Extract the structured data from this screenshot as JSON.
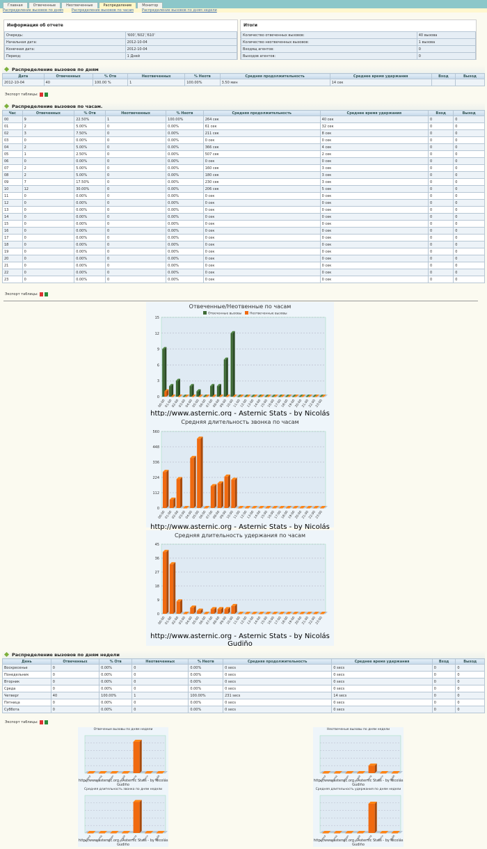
{
  "nav": {
    "tabs": [
      "Главная",
      "Отвеченные",
      "Неотвеченные",
      "Распределение",
      "Монитор"
    ],
    "active_tab": 3,
    "sublinks": [
      "Распределение вызовов по дням",
      "Распределение вызовов по часам",
      "Распределение вызовов по дням недели"
    ]
  },
  "report_info": {
    "title": "Информация об отчете",
    "rows": [
      {
        "label": "Очередь:",
        "value": "'600','602','610'"
      },
      {
        "label": "Начальная дата:",
        "value": "2012-10-04"
      },
      {
        "label": "Конечная дата:",
        "value": "2012-10-04"
      },
      {
        "label": "Период:",
        "value": "1 Дней"
      }
    ]
  },
  "totals": {
    "title": "Итоги",
    "rows": [
      {
        "label": "Количество отвеченных вызовов:",
        "value": "40 вызова"
      },
      {
        "label": "Количество неотвеченных вызовов:",
        "value": "1 вызова"
      },
      {
        "label": "Входящ агентов:",
        "value": "0"
      },
      {
        "label": "Выходов агентов:",
        "value": "0"
      }
    ]
  },
  "export_label": "Экспорт таблицы:",
  "by_day": {
    "title": "Распределение вызовов по дням",
    "columns": [
      "Дата",
      "Отвеченных",
      "% Отв",
      "Неотвеченных",
      "% Неотв",
      "Средняя продолжительность",
      "Среднее время удержания",
      "Вход",
      "Выход"
    ],
    "rows": [
      [
        "2012-10-04",
        "40",
        "100.00 %",
        "1",
        "100.00%",
        "3.50 мин",
        "14 сек",
        "",
        ""
      ]
    ]
  },
  "by_hour": {
    "title": "Распределение вызовов по часам.",
    "columns": [
      "Час",
      "Отвеченных",
      "% Отв",
      "Неотвеченных",
      "% Неотв",
      "Средняя продолжительность",
      "Среднее время удержания",
      "Вход",
      "Выход"
    ],
    "rows": [
      [
        "00",
        "9",
        "22.50%",
        "1",
        "100.00%",
        "264 сек",
        "40 сек",
        "0",
        "0"
      ],
      [
        "01",
        "2",
        "5.00%",
        "0",
        "0.00%",
        "61 сек",
        "32 сек",
        "0",
        "0"
      ],
      [
        "02",
        "3",
        "7.50%",
        "0",
        "0.00%",
        "211 сек",
        "8 сек",
        "0",
        "0"
      ],
      [
        "03",
        "0",
        "0.00%",
        "0",
        "0.00%",
        "0 сек",
        "0 сек",
        "0",
        "0"
      ],
      [
        "04",
        "2",
        "5.00%",
        "0",
        "0.00%",
        "366 сек",
        "4 сек",
        "0",
        "0"
      ],
      [
        "05",
        "1",
        "2.50%",
        "0",
        "0.00%",
        "507 сек",
        "2 сек",
        "0",
        "0"
      ],
      [
        "06",
        "0",
        "0.00%",
        "0",
        "0.00%",
        "0 сек",
        "0 сек",
        "0",
        "0"
      ],
      [
        "07",
        "2",
        "5.00%",
        "0",
        "0.00%",
        "160 сек",
        "3 сек",
        "0",
        "0"
      ],
      [
        "08",
        "2",
        "5.00%",
        "0",
        "0.00%",
        "180 сек",
        "3 сек",
        "0",
        "0"
      ],
      [
        "09",
        "7",
        "17.50%",
        "0",
        "0.00%",
        "230 сек",
        "3 сек",
        "0",
        "0"
      ],
      [
        "10",
        "12",
        "30.00%",
        "0",
        "0.00%",
        "206 сек",
        "5 сек",
        "0",
        "0"
      ],
      [
        "11",
        "0",
        "0.00%",
        "0",
        "0.00%",
        "0 сек",
        "0 сек",
        "0",
        "0"
      ],
      [
        "12",
        "0",
        "0.00%",
        "0",
        "0.00%",
        "0 сек",
        "0 сек",
        "0",
        "0"
      ],
      [
        "13",
        "0",
        "0.00%",
        "0",
        "0.00%",
        "0 сек",
        "0 сек",
        "0",
        "0"
      ],
      [
        "14",
        "0",
        "0.00%",
        "0",
        "0.00%",
        "0 сек",
        "0 сек",
        "0",
        "0"
      ],
      [
        "15",
        "0",
        "0.00%",
        "0",
        "0.00%",
        "0 сек",
        "0 сек",
        "0",
        "0"
      ],
      [
        "16",
        "0",
        "0.00%",
        "0",
        "0.00%",
        "0 сек",
        "0 сек",
        "0",
        "0"
      ],
      [
        "17",
        "0",
        "0.00%",
        "0",
        "0.00%",
        "0 сек",
        "0 сек",
        "0",
        "0"
      ],
      [
        "18",
        "0",
        "0.00%",
        "0",
        "0.00%",
        "0 сек",
        "0 сек",
        "0",
        "0"
      ],
      [
        "19",
        "0",
        "0.00%",
        "0",
        "0.00%",
        "0 сек",
        "0 сек",
        "0",
        "0"
      ],
      [
        "20",
        "0",
        "0.00%",
        "0",
        "0.00%",
        "0 сек",
        "0 сек",
        "0",
        "0"
      ],
      [
        "21",
        "0",
        "0.00%",
        "0",
        "0.00%",
        "0 сек",
        "0 сек",
        "0",
        "0"
      ],
      [
        "22",
        "0",
        "0.00%",
        "0",
        "0.00%",
        "0 сек",
        "0 сек",
        "0",
        "0"
      ],
      [
        "23",
        "0",
        "0.00%",
        "0",
        "0.00%",
        "0 сек",
        "0 сек",
        "0",
        "0"
      ]
    ]
  },
  "by_weekday": {
    "title": "Распределение вызовов по дням недели",
    "columns": [
      "День",
      "Отвеченных",
      "% Отв",
      "Неотвеченных",
      "% Неотв",
      "Средняя продолжительность",
      "Среднее время удержания",
      "Вход",
      "Выход"
    ],
    "rows": [
      [
        "Воскресенье",
        "0",
        "0.00%",
        "0",
        "0.00%",
        "0 secs",
        "0 secs",
        "0",
        "0"
      ],
      [
        "Понедельник",
        "0",
        "0.00%",
        "0",
        "0.00%",
        "0 secs",
        "0 secs",
        "0",
        "0"
      ],
      [
        "Вторник",
        "0",
        "0.00%",
        "0",
        "0.00%",
        "0 secs",
        "0 secs",
        "0",
        "0"
      ],
      [
        "Среда",
        "0",
        "0.00%",
        "0",
        "0.00%",
        "0 secs",
        "0 secs",
        "0",
        "0"
      ],
      [
        "Четверг",
        "40",
        "100.00%",
        "1",
        "100.00%",
        "231 secs",
        "14 secs",
        "0",
        "0"
      ],
      [
        "Пятница",
        "0",
        "0.00%",
        "0",
        "0.00%",
        "0 secs",
        "0 secs",
        "0",
        "0"
      ],
      [
        "Суббота",
        "0",
        "0.00%",
        "0",
        "0.00%",
        "0 secs",
        "0 secs",
        "0",
        "0"
      ]
    ]
  },
  "chart_footer": "http://www.asternic.org - Asternic Stats - by Nicolás Gudiño",
  "colors": {
    "answered": "#3f6b35",
    "unanswered": "#f06a10",
    "panel": "#eef5fa"
  },
  "chart_data": [
    {
      "type": "bar",
      "title": "Отвеченные/Неотвенные по часам",
      "categories": [
        "00",
        "01",
        "02",
        "03",
        "04",
        "05",
        "06",
        "07",
        "08",
        "09",
        "10",
        "11",
        "12",
        "13",
        "14",
        "15",
        "16",
        "17",
        "18",
        "19",
        "20",
        "21",
        "22",
        "23"
      ],
      "series": [
        {
          "name": "Отвеченные вызовы",
          "values": [
            9,
            2,
            3,
            0,
            2,
            1,
            0,
            2,
            2,
            7,
            12,
            0,
            0,
            0,
            0,
            0,
            0,
            0,
            0,
            0,
            0,
            0,
            0,
            0
          ]
        },
        {
          "name": "Неотвеченные вызовы",
          "values": [
            1,
            0,
            0,
            0,
            0,
            0,
            0,
            0,
            0,
            0,
            0,
            0,
            0,
            0,
            0,
            0,
            0,
            0,
            0,
            0,
            0,
            0,
            0,
            0
          ]
        }
      ],
      "yticks": [
        0,
        3,
        6,
        9,
        12,
        15
      ],
      "ylim": [
        0,
        15
      ]
    },
    {
      "type": "bar",
      "title": "Средняя длительность звонка по часам",
      "categories": [
        "00",
        "01",
        "02",
        "03",
        "04",
        "05",
        "06",
        "07",
        "08",
        "09",
        "10",
        "11",
        "12",
        "13",
        "14",
        "15",
        "16",
        "17",
        "18",
        "19",
        "20",
        "21",
        "22",
        "23"
      ],
      "values": [
        264,
        61,
        211,
        0,
        366,
        507,
        0,
        160,
        180,
        230,
        206,
        0,
        0,
        0,
        0,
        0,
        0,
        0,
        0,
        0,
        0,
        0,
        0,
        0
      ],
      "yticks": [
        0,
        112,
        224,
        336,
        448,
        560
      ],
      "ylim": [
        0,
        560
      ]
    },
    {
      "type": "bar",
      "title": "Средняя длительность удержания по часам",
      "categories": [
        "00",
        "01",
        "02",
        "03",
        "04",
        "05",
        "06",
        "07",
        "08",
        "09",
        "10",
        "11",
        "12",
        "13",
        "14",
        "15",
        "16",
        "17",
        "18",
        "19",
        "20",
        "21",
        "22",
        "23"
      ],
      "values": [
        40,
        32,
        8,
        0,
        4,
        2,
        0,
        3,
        3,
        3,
        5,
        0,
        0,
        0,
        0,
        0,
        0,
        0,
        0,
        0,
        0,
        0,
        0,
        0
      ],
      "yticks": [
        0,
        9,
        18,
        27,
        36,
        45
      ],
      "ylim": [
        0,
        45
      ]
    },
    {
      "type": "bar",
      "title": "Отвеченые вызовы по дням недели",
      "categories": [
        "Воскр",
        "Понед",
        "Вторн",
        "Среда",
        "Четв",
        "Пятн",
        "Субб"
      ],
      "values": [
        0,
        0,
        0,
        0,
        40,
        0,
        0
      ],
      "ylim": [
        0,
        48
      ]
    },
    {
      "type": "bar",
      "title": "Неотвеченые вызовы по дням недели",
      "categories": [
        "Воскр",
        "Понед",
        "Вторн",
        "Среда",
        "Четв",
        "Пятн",
        "Субб"
      ],
      "values": [
        0,
        0,
        0,
        0,
        1,
        0,
        0
      ],
      "ylim": [
        0,
        5
      ]
    },
    {
      "type": "bar",
      "title": "Средняя длительность звонка по дням недели",
      "categories": [
        "Воскр",
        "Понед",
        "Вторн",
        "Среда",
        "Четв",
        "Пятн",
        "Субб"
      ],
      "values": [
        0,
        0,
        0,
        0,
        231,
        0,
        0
      ],
      "ylim": [
        0,
        280
      ]
    },
    {
      "type": "bar",
      "title": "Средняя длительность удержания по дням недели",
      "categories": [
        "Воскр",
        "Понед",
        "Вторн",
        "Среда",
        "Четв",
        "Пятн",
        "Субб"
      ],
      "values": [
        0,
        0,
        0,
        0,
        14,
        0,
        0
      ],
      "ylim": [
        0,
        18
      ]
    }
  ]
}
